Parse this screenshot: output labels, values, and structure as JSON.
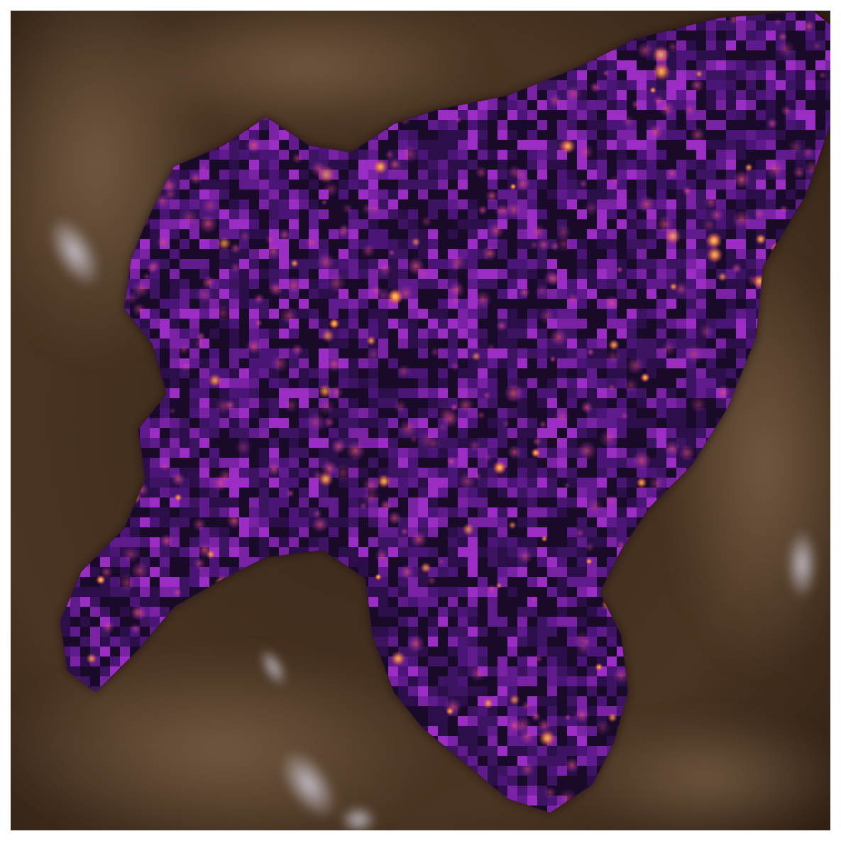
{
  "image": {
    "subject": "",
    "palette": {
      "background_dark": "#2a1c12",
      "background_mid": "#4a3422",
      "background_light": "#6e5640",
      "highlight": "#c9c6d6",
      "overlay_dark": "#140820",
      "overlay_mid": "#4b1578",
      "overlay_bright": "#9b2cc4",
      "hot_spot": "#f08a3a",
      "hot_core": "#ffd08a"
    }
  }
}
